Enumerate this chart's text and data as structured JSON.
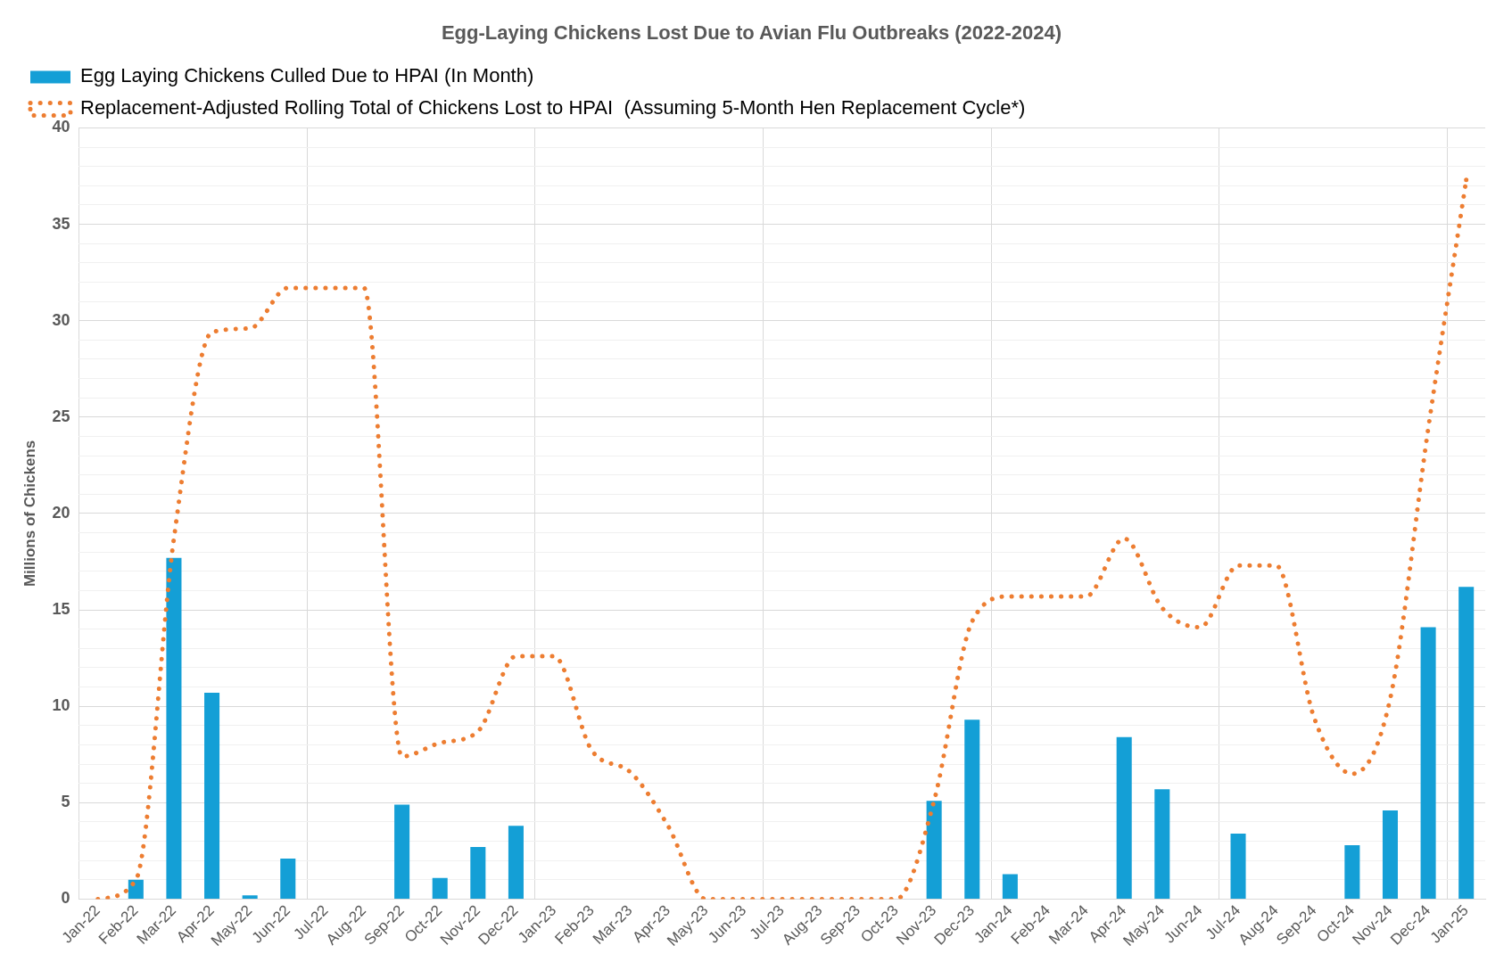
{
  "chart_data": {
    "type": "bar",
    "title": "Egg-Laying Chickens Lost Due to Avian Flu Outbreaks (2022-2024)",
    "ylabel": "Millions of Chickens",
    "categories": [
      "Jan-22",
      "Feb-22",
      "Mar-22",
      "Apr-22",
      "May-22",
      "Jun-22",
      "Jul-22",
      "Aug-22",
      "Sep-22",
      "Oct-22",
      "Nov-22",
      "Dec-22",
      "Jan-23",
      "Feb-23",
      "Mar-23",
      "Apr-23",
      "May-23",
      "Jun-23",
      "Jul-23",
      "Aug-23",
      "Sep-23",
      "Oct-23",
      "Nov-23",
      "Dec-23",
      "Jan-24",
      "Feb-24",
      "Mar-24",
      "Apr-24",
      "May-24",
      "Jun-24",
      "Jul-24",
      "Aug-24",
      "Sep-24",
      "Oct-24",
      "Nov-24",
      "Dec-24",
      "Jan-25"
    ],
    "series": [
      {
        "name": "Egg Laying Chickens Culled Due to HPAI (In Month)",
        "color": "#149fd6",
        "values": [
          0,
          1.0,
          17.7,
          10.7,
          0.2,
          2.1,
          0,
          0,
          4.9,
          1.1,
          2.7,
          3.8,
          0,
          0,
          0,
          0,
          0,
          0,
          0,
          0,
          0,
          0,
          5.1,
          9.3,
          1.3,
          0,
          0,
          8.4,
          5.7,
          0,
          3.4,
          0,
          0,
          2.8,
          4.6,
          14.1,
          16.2
        ]
      },
      {
        "name": "Replacement-Adjusted Rolling Total of Chickens Lost to HPAI  (Assuming 5-Month Hen Replacement Cycle*)",
        "type": "line",
        "color": "#ed7d31",
        "line_style": "dotted",
        "values": [
          0,
          1.0,
          18.7,
          29.4,
          29.6,
          31.7,
          31.7,
          31.7,
          7.4,
          8.1,
          8.7,
          12.6,
          12.6,
          7.7,
          6.6,
          3.8,
          0,
          0,
          0,
          0,
          0,
          0,
          5.1,
          14.4,
          15.7,
          15.7,
          15.7,
          18.7,
          15.1,
          14.1,
          17.3,
          17.3,
          9.4,
          6.5,
          10.4,
          24.4,
          37.3
        ]
      }
    ],
    "ylim": [
      0,
      40
    ],
    "yticks": [
      0,
      {
        "value": 1,
        "label": null
      },
      {
        "value": 2,
        "label": null
      },
      {
        "value": 3,
        "label": null
      },
      {
        "value": 4,
        "label": null
      },
      5,
      {
        "value": 6,
        "label": null
      },
      {
        "value": 7,
        "label": null
      },
      {
        "value": 8,
        "label": null
      },
      {
        "value": 9,
        "label": null
      },
      10,
      {
        "value": 11,
        "label": null
      },
      {
        "value": 12,
        "label": null
      },
      {
        "value": 13,
        "label": null
      },
      {
        "value": 14,
        "label": null
      },
      15,
      {
        "value": 16,
        "label": null
      },
      {
        "value": 17,
        "label": null
      },
      {
        "value": 18,
        "label": null
      },
      {
        "value": 19,
        "label": null
      },
      20,
      {
        "value": 21,
        "label": null
      },
      {
        "value": 22,
        "label": null
      },
      {
        "value": 23,
        "label": null
      },
      {
        "value": 24,
        "label": null
      },
      25,
      {
        "value": 26,
        "label": null
      },
      {
        "value": 27,
        "label": null
      },
      {
        "value": 28,
        "label": null
      },
      {
        "value": 29,
        "label": null
      },
      30,
      {
        "value": 31,
        "label": null
      },
      {
        "value": 32,
        "label": null
      },
      {
        "value": 33,
        "label": null
      },
      {
        "value": 34,
        "label": null
      },
      35,
      {
        "value": 36,
        "label": null
      },
      {
        "value": 37,
        "label": null
      },
      {
        "value": 38,
        "label": null
      },
      {
        "value": 39,
        "label": null
      },
      40
    ],
    "grid": true,
    "legend": "top",
    "marker": "none"
  }
}
